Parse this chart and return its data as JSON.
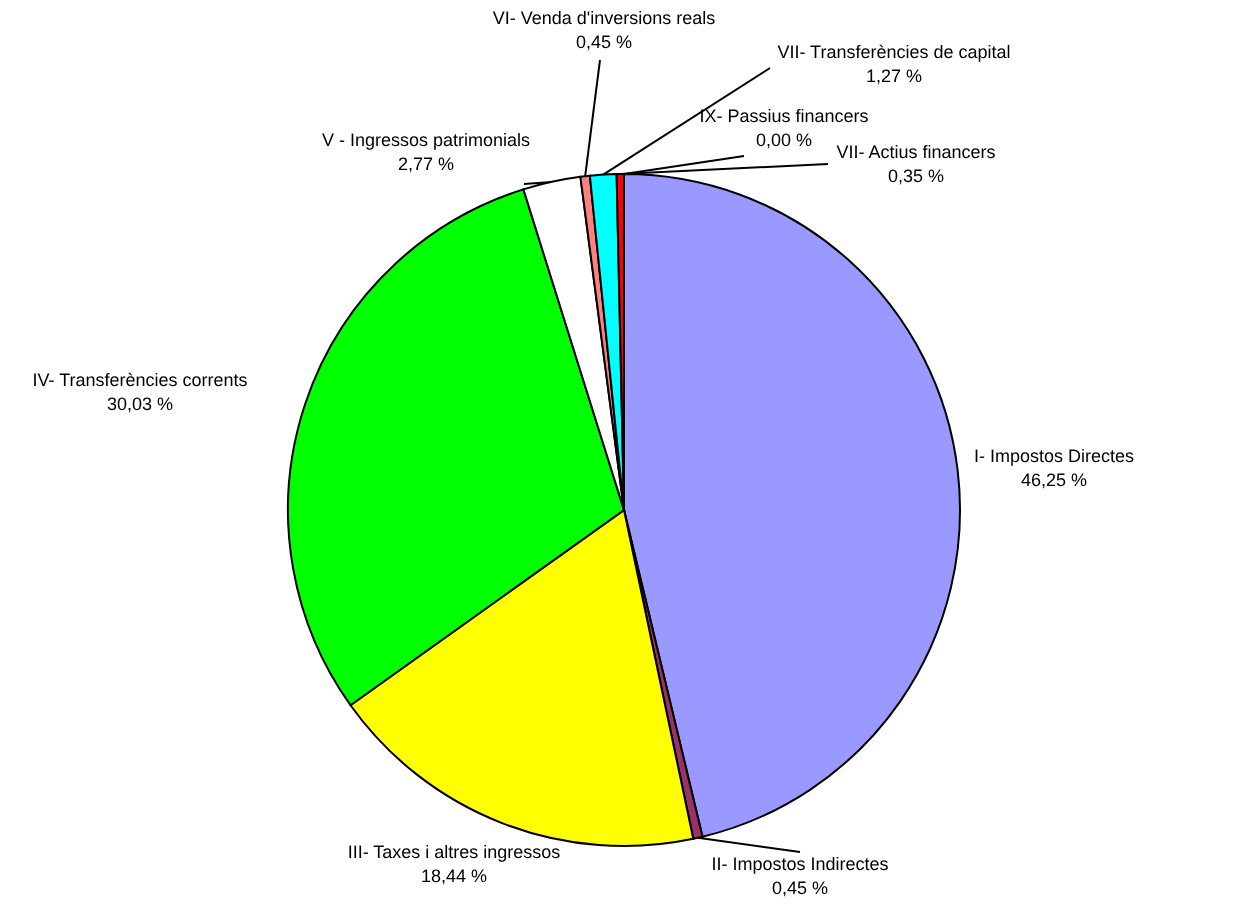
{
  "chart_data": {
    "type": "pie",
    "categories": [
      "I- Impostos Directes",
      "II- Impostos Indirectes",
      "III- Taxes i altres ingressos",
      "IV- Transferències corrents",
      "V - Ingressos patrimonials",
      "VI- Venda d'inversions reals",
      "VII- Transferències de capital",
      "VII- Actius financers",
      "IX- Passius financers"
    ],
    "values": [
      46.25,
      0.45,
      18.44,
      30.03,
      2.77,
      0.45,
      1.27,
      0.35,
      0.0
    ],
    "colors": [
      "#9999ff",
      "#993366",
      "#ffff00",
      "#00ff00",
      "#ffffff",
      "#ff8080",
      "#00ffff",
      "#ff0000",
      "#000080"
    ],
    "value_labels": [
      "46,25 %",
      "0,45 %",
      "18,44 %",
      "30,03 %",
      "2,77 %",
      "0,45 %",
      "1,27 %",
      "0,35 %",
      "0,00 %"
    ]
  }
}
